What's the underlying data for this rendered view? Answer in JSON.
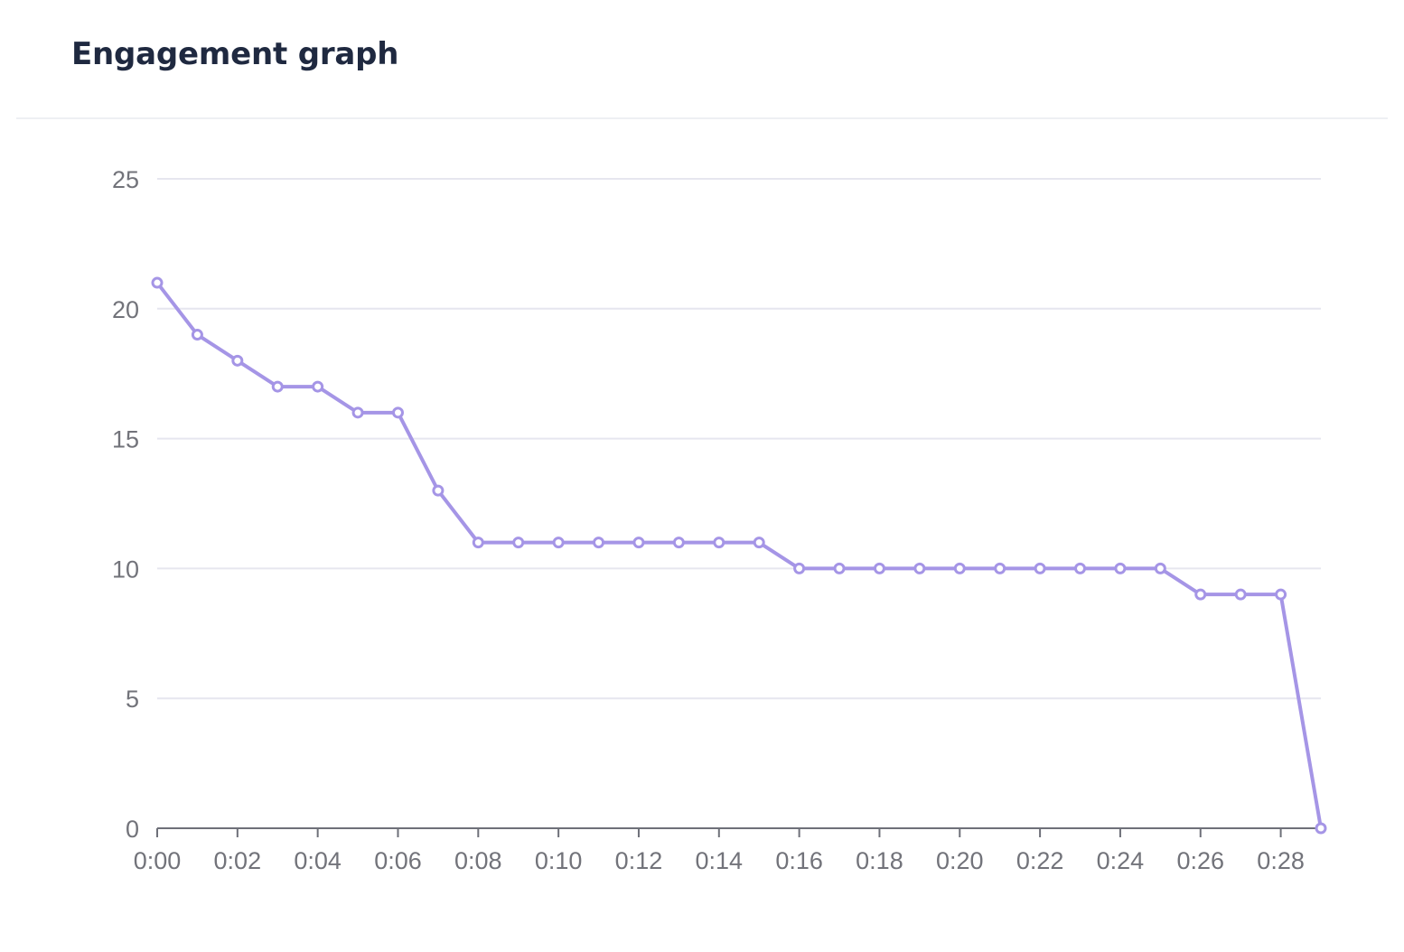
{
  "card": {
    "title": "Engagement graph"
  },
  "chart_data": {
    "type": "line",
    "title": "",
    "xlabel": "",
    "ylabel": "",
    "x": [
      "0:00",
      "0:01",
      "0:02",
      "0:03",
      "0:04",
      "0:05",
      "0:06",
      "0:07",
      "0:08",
      "0:09",
      "0:10",
      "0:11",
      "0:12",
      "0:13",
      "0:14",
      "0:15",
      "0:16",
      "0:17",
      "0:18",
      "0:19",
      "0:20",
      "0:21",
      "0:22",
      "0:23",
      "0:24",
      "0:25",
      "0:26",
      "0:27",
      "0:28",
      "0:29"
    ],
    "x_tick_labels": [
      "0:00",
      "0:02",
      "0:04",
      "0:06",
      "0:08",
      "0:10",
      "0:12",
      "0:14",
      "0:16",
      "0:18",
      "0:20",
      "0:22",
      "0:24",
      "0:26",
      "0:28"
    ],
    "y_ticks": [
      0,
      5,
      10,
      15,
      20,
      25
    ],
    "ylim": [
      0,
      25
    ],
    "grid": true,
    "legend": "none",
    "series": [
      {
        "values": [
          21,
          19,
          18,
          17,
          17,
          16,
          16,
          13,
          11,
          11,
          11,
          11,
          11,
          11,
          11,
          11,
          10,
          10,
          10,
          10,
          10,
          10,
          10,
          10,
          10,
          10,
          9,
          9,
          9,
          0
        ]
      }
    ],
    "colors": {
      "line": "#a595e6",
      "grid": "#e6e6ef",
      "axis": "#6e7079",
      "tick_text": "#72737a"
    }
  }
}
